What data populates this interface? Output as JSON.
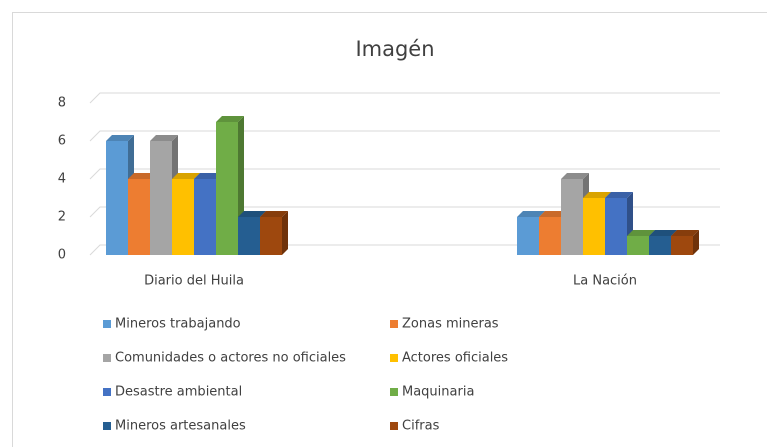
{
  "chart_data": {
    "type": "bar",
    "title": "Imagén",
    "categories": [
      "Diario del Huila",
      "La Nación"
    ],
    "series": [
      {
        "name": "Mineros trabajando",
        "color": "#5b9bd5",
        "values": [
          6,
          2
        ]
      },
      {
        "name": "Zonas mineras",
        "color": "#ed7d31",
        "values": [
          4,
          2
        ]
      },
      {
        "name": "Comunidades o actores no oficiales",
        "color": "#a5a5a5",
        "values": [
          6,
          4
        ]
      },
      {
        "name": "Actores oficiales",
        "color": "#ffc000",
        "values": [
          4,
          3
        ]
      },
      {
        "name": "Desastre ambiental",
        "color": "#4472c4",
        "values": [
          4,
          3
        ]
      },
      {
        "name": "Maquinaria",
        "color": "#70ad47",
        "values": [
          7,
          1
        ]
      },
      {
        "name": "Mineros artesanales",
        "color": "#255e91",
        "values": [
          2,
          1
        ]
      },
      {
        "name": "Cifras",
        "color": "#9e480e",
        "values": [
          2,
          1
        ]
      }
    ],
    "ylim": [
      0,
      8
    ],
    "yticks": [
      0,
      2,
      4,
      6,
      8
    ],
    "grid": true
  }
}
